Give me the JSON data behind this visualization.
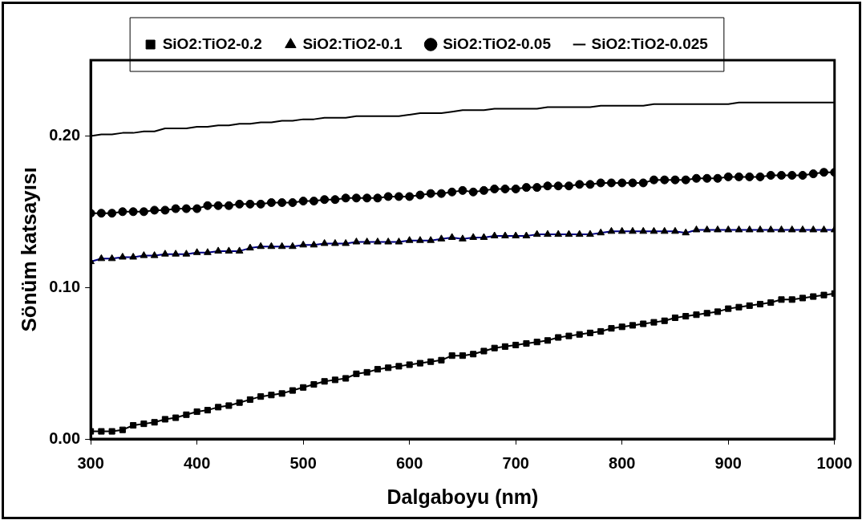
{
  "chart_data": {
    "type": "line",
    "xlabel": "Dalgaboyu (nm)",
    "ylabel": "Sönüm katsayısı",
    "x": [
      300,
      310,
      320,
      330,
      340,
      350,
      360,
      370,
      380,
      390,
      400,
      410,
      420,
      430,
      440,
      450,
      460,
      470,
      480,
      490,
      500,
      510,
      520,
      530,
      540,
      550,
      560,
      570,
      580,
      590,
      600,
      610,
      620,
      630,
      640,
      650,
      660,
      670,
      680,
      690,
      700,
      710,
      720,
      730,
      740,
      750,
      760,
      770,
      780,
      790,
      800,
      810,
      820,
      830,
      840,
      850,
      860,
      870,
      880,
      890,
      900,
      910,
      920,
      930,
      940,
      950,
      960,
      970,
      980,
      990,
      1000
    ],
    "xlim": [
      300,
      1000
    ],
    "xticks": [
      300,
      400,
      500,
      600,
      700,
      800,
      900,
      1000
    ],
    "ylim": [
      0,
      0.25
    ],
    "yticks": [
      {
        "value": 0,
        "label": "0.00"
      },
      {
        "value": 0.1,
        "label": "0.10"
      },
      {
        "value": 0.2,
        "label": "0.20"
      }
    ],
    "grid": false,
    "legend": "top",
    "line_style": "solid",
    "series": [
      {
        "name": "SiO2:TiO2-0.2",
        "color": "#000000",
        "marker": "square",
        "values": [
          0.005,
          0.005,
          0.005,
          0.006,
          0.009,
          0.01,
          0.011,
          0.013,
          0.014,
          0.016,
          0.018,
          0.019,
          0.021,
          0.022,
          0.024,
          0.026,
          0.028,
          0.029,
          0.03,
          0.032,
          0.034,
          0.036,
          0.038,
          0.039,
          0.04,
          0.043,
          0.044,
          0.046,
          0.047,
          0.048,
          0.049,
          0.05,
          0.051,
          0.052,
          0.055,
          0.055,
          0.056,
          0.058,
          0.06,
          0.061,
          0.062,
          0.063,
          0.064,
          0.065,
          0.067,
          0.068,
          0.069,
          0.07,
          0.071,
          0.073,
          0.074,
          0.075,
          0.076,
          0.077,
          0.078,
          0.08,
          0.081,
          0.082,
          0.083,
          0.084,
          0.086,
          0.087,
          0.088,
          0.089,
          0.09,
          0.092,
          0.092,
          0.093,
          0.094,
          0.095,
          0.096
        ]
      },
      {
        "name": "SiO2:TiO2-0.1",
        "color": "#000080",
        "marker": "triangle",
        "values": [
          0.117,
          0.119,
          0.119,
          0.12,
          0.12,
          0.121,
          0.121,
          0.122,
          0.122,
          0.122,
          0.123,
          0.123,
          0.124,
          0.124,
          0.124,
          0.126,
          0.127,
          0.127,
          0.127,
          0.127,
          0.128,
          0.128,
          0.129,
          0.129,
          0.129,
          0.13,
          0.13,
          0.13,
          0.13,
          0.13,
          0.131,
          0.131,
          0.131,
          0.132,
          0.133,
          0.132,
          0.133,
          0.133,
          0.134,
          0.134,
          0.134,
          0.134,
          0.135,
          0.135,
          0.135,
          0.135,
          0.135,
          0.135,
          0.136,
          0.137,
          0.137,
          0.137,
          0.137,
          0.137,
          0.137,
          0.137,
          0.136,
          0.138,
          0.138,
          0.138,
          0.138,
          0.138,
          0.138,
          0.138,
          0.138,
          0.138,
          0.138,
          0.138,
          0.138,
          0.138,
          0.138
        ]
      },
      {
        "name": "SiO2:TiO2-0.05",
        "color": "#000000",
        "marker": "circle",
        "values": [
          0.149,
          0.149,
          0.149,
          0.15,
          0.15,
          0.15,
          0.151,
          0.151,
          0.152,
          0.152,
          0.152,
          0.154,
          0.154,
          0.154,
          0.155,
          0.155,
          0.155,
          0.156,
          0.156,
          0.156,
          0.157,
          0.157,
          0.158,
          0.158,
          0.159,
          0.159,
          0.159,
          0.159,
          0.16,
          0.16,
          0.16,
          0.161,
          0.162,
          0.162,
          0.163,
          0.164,
          0.163,
          0.164,
          0.165,
          0.165,
          0.165,
          0.166,
          0.166,
          0.167,
          0.167,
          0.167,
          0.168,
          0.168,
          0.169,
          0.169,
          0.169,
          0.169,
          0.169,
          0.171,
          0.171,
          0.171,
          0.171,
          0.172,
          0.172,
          0.172,
          0.173,
          0.173,
          0.173,
          0.173,
          0.174,
          0.174,
          0.174,
          0.174,
          0.175,
          0.176,
          0.176
        ]
      },
      {
        "name": "SiO2:TiO2-0.025",
        "color": "#000000",
        "marker": "none",
        "values": [
          0.2,
          0.201,
          0.201,
          0.202,
          0.202,
          0.203,
          0.203,
          0.205,
          0.205,
          0.205,
          0.206,
          0.206,
          0.207,
          0.207,
          0.208,
          0.208,
          0.209,
          0.209,
          0.21,
          0.21,
          0.211,
          0.211,
          0.212,
          0.212,
          0.212,
          0.213,
          0.213,
          0.213,
          0.213,
          0.213,
          0.214,
          0.215,
          0.215,
          0.215,
          0.216,
          0.217,
          0.217,
          0.217,
          0.218,
          0.218,
          0.218,
          0.218,
          0.218,
          0.219,
          0.219,
          0.219,
          0.219,
          0.219,
          0.22,
          0.22,
          0.22,
          0.22,
          0.22,
          0.221,
          0.221,
          0.221,
          0.221,
          0.221,
          0.221,
          0.221,
          0.221,
          0.222,
          0.222,
          0.222,
          0.222,
          0.222,
          0.222,
          0.222,
          0.222,
          0.222,
          0.222
        ]
      }
    ]
  }
}
